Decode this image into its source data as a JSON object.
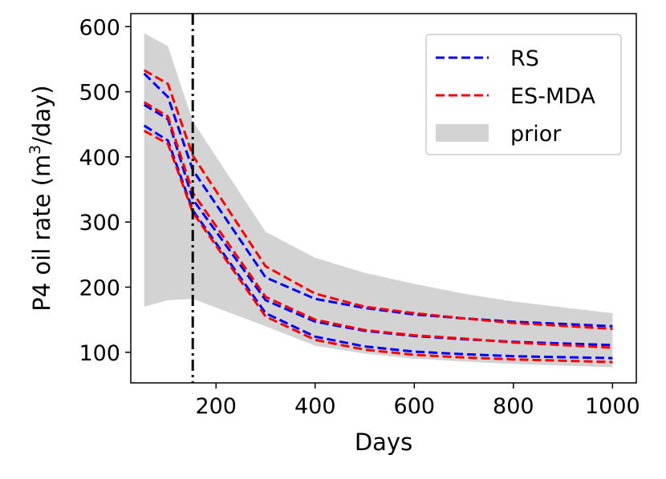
{
  "chart_data": {
    "type": "line",
    "xlabel": "Days",
    "ylabel_prefix": "P4 oil rate (m",
    "ylabel_sup": "3",
    "ylabel_suffix": "/day)",
    "xlim": [
      28,
      1048
    ],
    "ylim": [
      53,
      620
    ],
    "xticks": [
      200,
      400,
      600,
      800,
      1000
    ],
    "yticks": [
      100,
      200,
      300,
      400,
      500,
      600
    ],
    "vline_x": 153,
    "legend_position": "top-right",
    "prior": {
      "name": "prior",
      "color": "#d3d3d3",
      "x": [
        55,
        103,
        153,
        300,
        400,
        500,
        600,
        700,
        800,
        1000
      ],
      "upper": [
        590,
        570,
        455,
        285,
        245,
        222,
        205,
        190,
        178,
        160
      ],
      "lower": [
        170,
        180,
        182,
        140,
        110,
        98,
        90,
        86,
        82,
        77
      ]
    },
    "series": [
      {
        "name": "RS",
        "color": "#0000ff",
        "group": "RS",
        "x": [
          55,
          103,
          153,
          300,
          400,
          500,
          600,
          700,
          800,
          1000
        ],
        "values": [
          528,
          492,
          380,
          215,
          182,
          168,
          158,
          152,
          147,
          140
        ]
      },
      {
        "name": "RS",
        "color": "#0000ff",
        "group": "RS",
        "x": [
          55,
          103,
          153,
          300,
          400,
          500,
          600,
          700,
          800,
          1000
        ],
        "values": [
          480,
          458,
          335,
          180,
          147,
          133,
          125,
          120,
          116,
          111
        ]
      },
      {
        "name": "RS",
        "color": "#0000ff",
        "group": "RS",
        "x": [
          55,
          103,
          153,
          300,
          400,
          500,
          600,
          700,
          800,
          1000
        ],
        "values": [
          448,
          425,
          318,
          160,
          124,
          109,
          101,
          97,
          94,
          91
        ]
      },
      {
        "name": "ES-MDA",
        "color": "#ff0000",
        "group": "ES-MDA",
        "x": [
          55,
          103,
          153,
          300,
          400,
          500,
          600,
          700,
          800,
          1000
        ],
        "values": [
          533,
          512,
          402,
          232,
          190,
          170,
          160,
          152,
          145,
          136
        ]
      },
      {
        "name": "ES-MDA",
        "color": "#ff0000",
        "group": "ES-MDA",
        "x": [
          55,
          103,
          153,
          300,
          400,
          500,
          600,
          700,
          800,
          1000
        ],
        "values": [
          484,
          462,
          345,
          185,
          150,
          134,
          126,
          121,
          115,
          107
        ]
      },
      {
        "name": "ES-MDA",
        "color": "#ff0000",
        "group": "ES-MDA",
        "x": [
          55,
          103,
          153,
          300,
          400,
          500,
          600,
          700,
          800,
          1000
        ],
        "values": [
          440,
          420,
          315,
          155,
          119,
          104,
          96,
          92,
          89,
          85
        ]
      }
    ],
    "legend": [
      {
        "label": "RS",
        "kind": "dashed-line",
        "color": "#0000ff"
      },
      {
        "label": "ES-MDA",
        "kind": "dashed-line",
        "color": "#ff0000"
      },
      {
        "label": "prior",
        "kind": "patch",
        "color": "#d3d3d3"
      }
    ]
  }
}
